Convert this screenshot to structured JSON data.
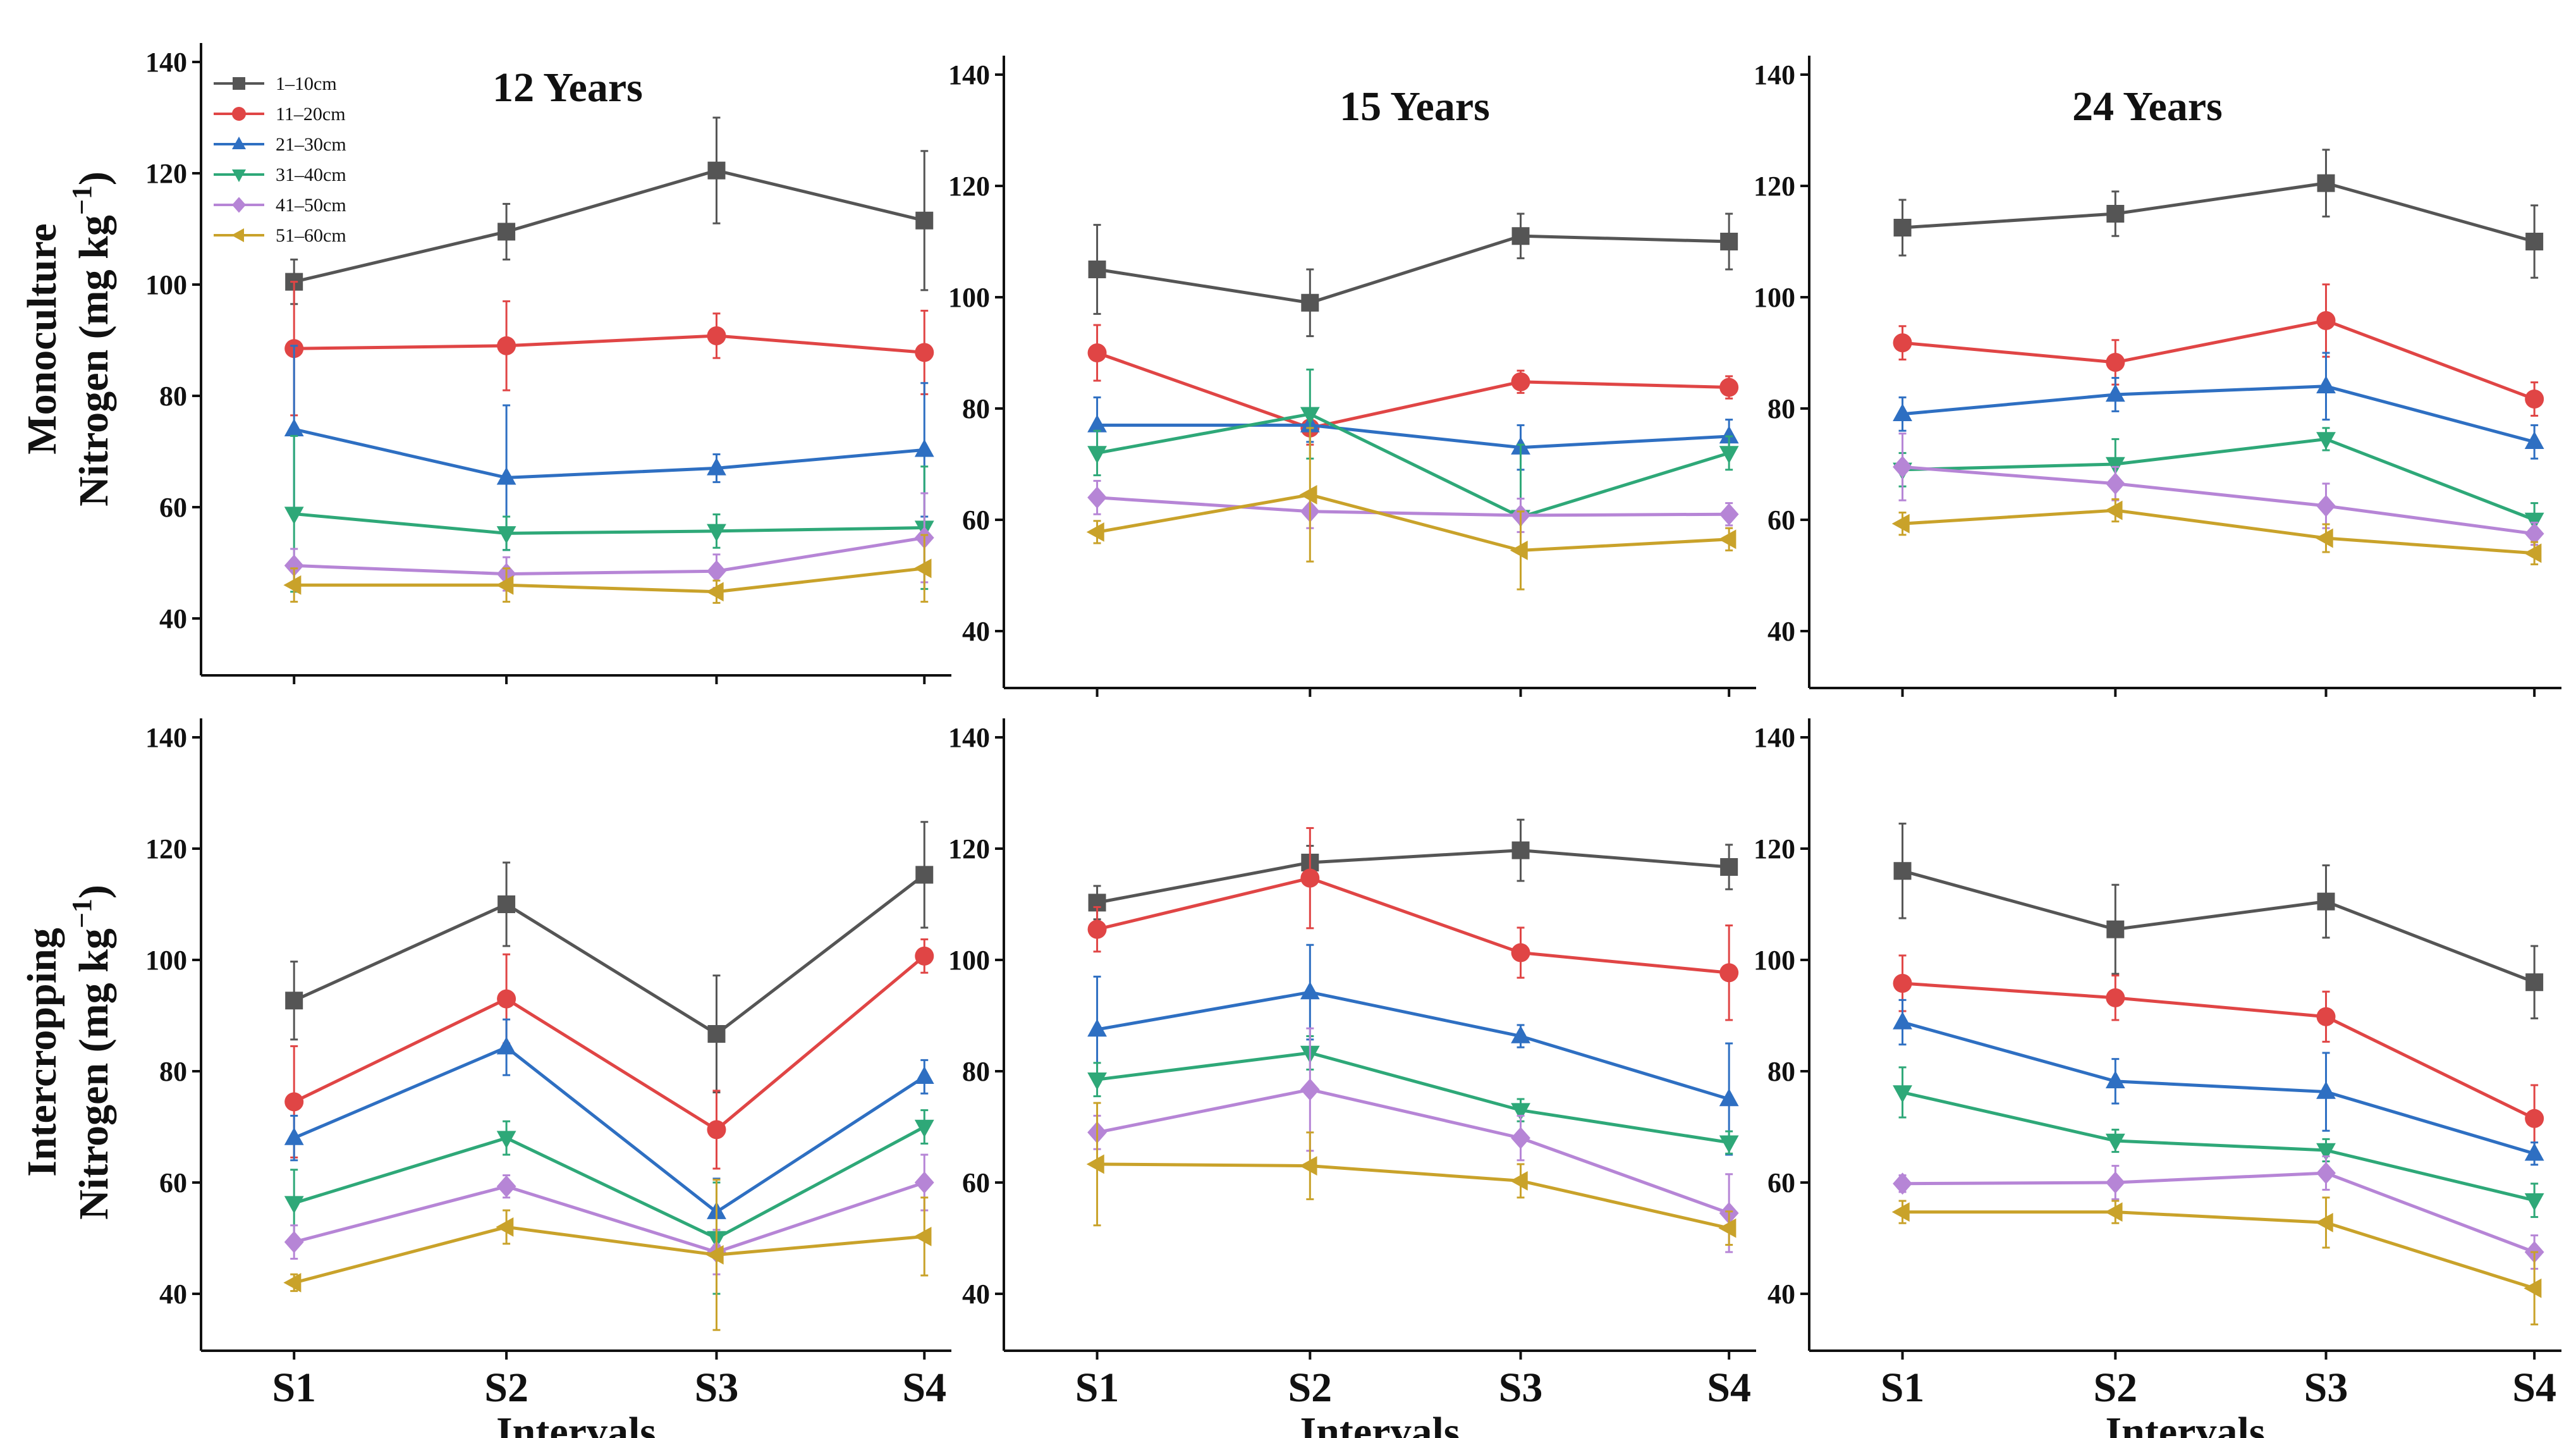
{
  "colors": {
    "s1": "#555555",
    "s2": "#e04545",
    "s3": "#2e6fc2",
    "s4": "#2ea878",
    "s5": "#b685d6",
    "s6": "#c9a22a"
  },
  "row_labels": [
    {
      "line1": "Monoculture",
      "line2_prefix": "Nitrogen (mg kg",
      "line2_sup": "−1",
      "line2_suffix": ")"
    },
    {
      "line1": "Intercropping",
      "line2_prefix": "Nitrogen (mg kg",
      "line2_sup": "−1",
      "line2_suffix": ")"
    }
  ],
  "xlabel": "Intervals",
  "chart_data": [
    {
      "type": "line",
      "row": 0,
      "col": 0,
      "title": "12 Years",
      "categories": [
        "S1",
        "S2",
        "S3",
        "S4"
      ],
      "ylim": [
        30,
        140
      ],
      "yticks": [
        40,
        60,
        80,
        100,
        120,
        140
      ],
      "series": [
        {
          "name": "1–10cm",
          "marker": "square",
          "values": [
            100.5,
            109.5,
            120.5,
            111.5
          ],
          "err": [
            4,
            5,
            9.5,
            12.5
          ]
        },
        {
          "name": "11–20cm",
          "marker": "circle",
          "values": [
            88.5,
            89,
            90.8,
            87.8
          ],
          "err": [
            12,
            8,
            4,
            7.5
          ]
        },
        {
          "name": "21–30cm",
          "marker": "triangle-up",
          "values": [
            74,
            65.3,
            67,
            70.3
          ],
          "err": [
            15,
            13,
            2.5,
            12
          ]
        },
        {
          "name": "31–40cm",
          "marker": "triangle-down",
          "values": [
            58.8,
            55.3,
            55.7,
            56.3
          ],
          "err": [
            14,
            3,
            3,
            11
          ]
        },
        {
          "name": "41–50cm",
          "marker": "diamond",
          "values": [
            49.5,
            48,
            48.5,
            54.5
          ],
          "err": [
            3,
            3,
            3,
            8
          ]
        },
        {
          "name": "51–60cm",
          "marker": "triangle-left",
          "values": [
            46,
            46,
            44.8,
            49
          ],
          "err": [
            3,
            3,
            2,
            6
          ]
        }
      ]
    },
    {
      "type": "line",
      "row": 0,
      "col": 1,
      "title": "15 Years",
      "categories": [
        "S1",
        "S2",
        "S3",
        "S4"
      ],
      "ylim": [
        30,
        140
      ],
      "yticks": [
        40,
        60,
        80,
        100,
        120,
        140
      ],
      "series": [
        {
          "name": "1–10cm",
          "marker": "square",
          "values": [
            105,
            99,
            111,
            110
          ],
          "err": [
            8,
            6,
            4,
            5
          ]
        },
        {
          "name": "11–20cm",
          "marker": "circle",
          "values": [
            90,
            76.5,
            84.8,
            83.8
          ],
          "err": [
            5,
            3,
            2,
            2
          ]
        },
        {
          "name": "21–30cm",
          "marker": "triangle-up",
          "values": [
            77,
            77,
            73,
            75
          ],
          "err": [
            5,
            3,
            4,
            3
          ]
        },
        {
          "name": "31–40cm",
          "marker": "triangle-down",
          "values": [
            72,
            79,
            60.5,
            72
          ],
          "err": [
            4,
            8,
            13,
            3
          ]
        },
        {
          "name": "41–50cm",
          "marker": "diamond",
          "values": [
            64,
            61.5,
            60.8,
            61
          ],
          "err": [
            3,
            3,
            3,
            2
          ]
        },
        {
          "name": "51–60cm",
          "marker": "triangle-left",
          "values": [
            57.8,
            64.5,
            54.5,
            56.5
          ],
          "err": [
            2,
            12,
            7,
            2
          ]
        }
      ]
    },
    {
      "type": "line",
      "row": 0,
      "col": 2,
      "title": "24 Years",
      "categories": [
        "S1",
        "S2",
        "S3",
        "S4"
      ],
      "ylim": [
        30,
        140
      ],
      "yticks": [
        40,
        60,
        80,
        100,
        120,
        140
      ],
      "series": [
        {
          "name": "1–10cm",
          "marker": "square",
          "values": [
            112.5,
            115,
            120.5,
            110
          ],
          "err": [
            5,
            4,
            6,
            6.5
          ]
        },
        {
          "name": "11–20cm",
          "marker": "circle",
          "values": [
            91.8,
            88.3,
            95.8,
            81.7
          ],
          "err": [
            3,
            4,
            6.5,
            3
          ]
        },
        {
          "name": "21–30cm",
          "marker": "triangle-up",
          "values": [
            79,
            82.5,
            84,
            74
          ],
          "err": [
            3,
            3,
            6,
            3
          ]
        },
        {
          "name": "31–40cm",
          "marker": "triangle-down",
          "values": [
            69,
            70,
            74.5,
            60
          ],
          "err": [
            3,
            4.5,
            2,
            3
          ]
        },
        {
          "name": "41–50cm",
          "marker": "diamond",
          "values": [
            69.5,
            66.5,
            62.5,
            57.5
          ],
          "err": [
            6,
            3,
            4,
            2
          ]
        },
        {
          "name": "51–60cm",
          "marker": "triangle-left",
          "values": [
            59.3,
            61.7,
            56.7,
            54
          ],
          "err": [
            2,
            2,
            2.5,
            2
          ]
        }
      ]
    },
    {
      "type": "line",
      "row": 1,
      "col": 0,
      "title": "",
      "categories": [
        "S1",
        "S2",
        "S3",
        "S4"
      ],
      "ylim": [
        30,
        140
      ],
      "yticks": [
        40,
        60,
        80,
        100,
        120,
        140
      ],
      "series": [
        {
          "name": "1–10cm",
          "marker": "square",
          "values": [
            92.7,
            110,
            86.7,
            115.3
          ],
          "err": [
            7,
            7.5,
            10.5,
            9.5
          ]
        },
        {
          "name": "11–20cm",
          "marker": "circle",
          "values": [
            74.5,
            93,
            69.5,
            100.7
          ],
          "err": [
            10,
            8,
            7,
            3
          ]
        },
        {
          "name": "21–30cm",
          "marker": "triangle-up",
          "values": [
            68,
            84.3,
            54.7,
            79
          ],
          "err": [
            4,
            5,
            6,
            3
          ]
        },
        {
          "name": "31–40cm",
          "marker": "triangle-down",
          "values": [
            56.3,
            68,
            50,
            70
          ],
          "err": [
            6,
            3,
            10,
            3
          ]
        },
        {
          "name": "41–50cm",
          "marker": "diamond",
          "values": [
            49.3,
            59.3,
            47.5,
            60
          ],
          "err": [
            3,
            2,
            4,
            5
          ]
        },
        {
          "name": "51–60cm",
          "marker": "triangle-left",
          "values": [
            42,
            52,
            47,
            50.3
          ],
          "err": [
            1.5,
            3,
            13.5,
            7
          ]
        }
      ]
    },
    {
      "type": "line",
      "row": 1,
      "col": 1,
      "title": "",
      "categories": [
        "S1",
        "S2",
        "S3",
        "S4"
      ],
      "ylim": [
        30,
        140
      ],
      "yticks": [
        40,
        60,
        80,
        100,
        120,
        140
      ],
      "series": [
        {
          "name": "1–10cm",
          "marker": "square",
          "values": [
            110.3,
            117.5,
            119.7,
            116.7
          ],
          "err": [
            3,
            3,
            5.5,
            4
          ]
        },
        {
          "name": "11–20cm",
          "marker": "circle",
          "values": [
            105.5,
            114.7,
            101.3,
            97.7
          ],
          "err": [
            4,
            9,
            4.5,
            8.5
          ]
        },
        {
          "name": "21–30cm",
          "marker": "triangle-up",
          "values": [
            87.5,
            94.2,
            86.3,
            75
          ],
          "err": [
            9.5,
            8.5,
            2,
            10
          ]
        },
        {
          "name": "31–40cm",
          "marker": "triangle-down",
          "values": [
            78.5,
            83.3,
            73,
            67.2
          ],
          "err": [
            3,
            3,
            2,
            2
          ]
        },
        {
          "name": "41–50cm",
          "marker": "diamond",
          "values": [
            69,
            76.7,
            68,
            54.5
          ],
          "err": [
            3,
            11,
            4,
            7
          ]
        },
        {
          "name": "51–60cm",
          "marker": "triangle-left",
          "values": [
            63.3,
            63,
            60.3,
            51.8
          ],
          "err": [
            11,
            6,
            3,
            3
          ]
        }
      ]
    },
    {
      "type": "line",
      "row": 1,
      "col": 2,
      "title": "",
      "categories": [
        "S1",
        "S2",
        "S3",
        "S4"
      ],
      "ylim": [
        30,
        140
      ],
      "yticks": [
        40,
        60,
        80,
        100,
        120,
        140
      ],
      "series": [
        {
          "name": "1–10cm",
          "marker": "square",
          "values": [
            116,
            105.5,
            110.5,
            96
          ],
          "err": [
            8.5,
            8,
            6.5,
            6.5
          ]
        },
        {
          "name": "11–20cm",
          "marker": "circle",
          "values": [
            95.8,
            93.2,
            89.8,
            71.5
          ],
          "err": [
            5,
            4,
            4.5,
            6
          ]
        },
        {
          "name": "21–30cm",
          "marker": "triangle-up",
          "values": [
            88.8,
            78.2,
            76.3,
            65.2
          ],
          "err": [
            4,
            4,
            7,
            2
          ]
        },
        {
          "name": "31–40cm",
          "marker": "triangle-down",
          "values": [
            76.2,
            67.5,
            65.8,
            56.8
          ],
          "err": [
            4.5,
            2,
            2,
            3
          ]
        },
        {
          "name": "41–50cm",
          "marker": "diamond",
          "values": [
            59.8,
            60,
            61.7,
            47.5
          ],
          "err": [
            1.5,
            3,
            3,
            3
          ]
        },
        {
          "name": "51–60cm",
          "marker": "triangle-left",
          "values": [
            54.7,
            54.7,
            52.8,
            41
          ],
          "err": [
            2,
            2,
            4.5,
            6.5
          ]
        }
      ]
    }
  ]
}
